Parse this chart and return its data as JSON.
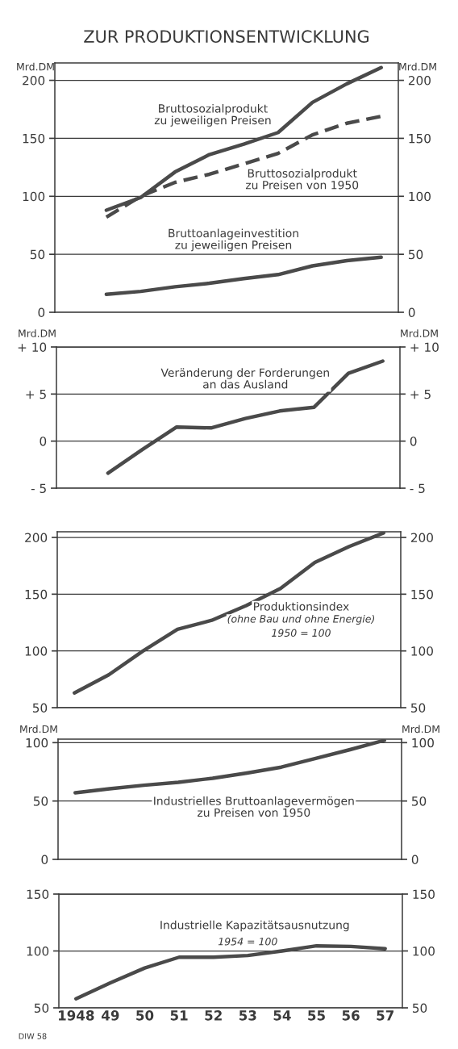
{
  "chart_data": [
    {
      "type": "line",
      "title": "ZUR PRODUKTIONSENTWICKLUNG",
      "ylabel": "Mrd.DM",
      "y2label": "Mrd.DM",
      "categories": [
        "1948",
        "49",
        "50",
        "51",
        "52",
        "53",
        "54",
        "55",
        "56",
        "57"
      ],
      "ylim": [
        0,
        215
      ],
      "yticks": [
        0,
        50,
        100,
        150,
        200
      ],
      "y2lim": [
        0,
        215
      ],
      "y2ticks": [
        0,
        50,
        100,
        150,
        200
      ],
      "tick_labels": "y",
      "grid": true,
      "legend": false,
      "series": [
        {
          "name": "Bruttosozialprodukt\nzu jeweiligen Preisen",
          "color": "#4a4a4a",
          "line_style": "solid",
          "values": [
            null,
            88,
            99,
            121,
            136,
            145,
            155,
            181,
            197,
            211
          ]
        },
        {
          "name": "Bruttosozialprodukt\nzu Preisen von 1950",
          "color": "#4a4a4a",
          "line_style": "dashed",
          "values": [
            null,
            82,
            100,
            112,
            119,
            128,
            137,
            153,
            163,
            169
          ]
        },
        {
          "name": "Bruttoanlageinvestition\nzu jeweiligen Preisen",
          "color": "#4a4a4a",
          "line_style": "solid",
          "values": [
            null,
            15.5,
            18,
            22,
            25,
            29,
            32.5,
            40,
            44.5,
            47.5
          ]
        }
      ]
    },
    {
      "type": "line",
      "ylabel": "Mrd.DM",
      "y2label": "Mrd.DM",
      "categories": [
        "1948",
        "49",
        "50",
        "51",
        "52",
        "53",
        "54",
        "55",
        "56",
        "57"
      ],
      "ylim": [
        -5,
        10
      ],
      "yticks": [
        {
          "value": -5,
          "label": "- 5"
        },
        0,
        {
          "value": 5,
          "label": "+ 5"
        },
        {
          "value": 10,
          "label": "+ 10"
        }
      ],
      "y2lim": [
        -5,
        10
      ],
      "y2ticks": [
        {
          "value": -5,
          "label": "- 5"
        },
        0,
        {
          "value": 5,
          "label": "+ 5"
        },
        {
          "value": 10,
          "label": "+ 10"
        }
      ],
      "tick_labels": "y",
      "grid": true,
      "legend": false,
      "series": [
        {
          "name": "Veränderung der Forderungen\nan das Ausland",
          "color": "#4a4a4a",
          "line_style": "solid",
          "values": [
            null,
            -3.4,
            -0.9,
            1.5,
            1.4,
            2.4,
            3.2,
            3.6,
            7.2,
            8.5
          ]
        }
      ]
    },
    {
      "type": "line",
      "categories": [
        "1948",
        "49",
        "50",
        "51",
        "52",
        "53",
        "54",
        "55",
        "56",
        "57"
      ],
      "ylim": [
        50,
        205
      ],
      "yticks": [
        50,
        100,
        150,
        200
      ],
      "y2lim": [
        50,
        205
      ],
      "y2ticks": [
        50,
        100,
        150,
        200
      ],
      "tick_labels": "y",
      "grid": true,
      "legend": false,
      "annotations": [
        "(ohne Bau und ohne Energie)",
        "1950 = 100"
      ],
      "series": [
        {
          "name": "Produktionsindex",
          "color": "#4a4a4a",
          "line_style": "solid",
          "values": [
            63,
            79,
            100,
            119,
            127,
            140,
            155,
            178,
            192,
            204
          ]
        }
      ]
    },
    {
      "type": "line",
      "ylabel": "Mrd.DM",
      "y2label": "Mrd.DM",
      "categories": [
        "1948",
        "49",
        "50",
        "51",
        "52",
        "53",
        "54",
        "55",
        "56",
        "57"
      ],
      "ylim": [
        0,
        103
      ],
      "yticks": [
        0,
        50,
        100
      ],
      "y2lim": [
        0,
        103
      ],
      "y2ticks": [
        0,
        50,
        100
      ],
      "tick_labels": "y",
      "grid": true,
      "legend": false,
      "series": [
        {
          "name": "Industrielles Bruttoanlagevermögen\nzu Preisen von 1950",
          "color": "#4a4a4a",
          "line_style": "solid",
          "values": [
            57,
            60.5,
            63.5,
            66,
            69.5,
            74,
            79,
            86.5,
            94,
            102
          ]
        }
      ]
    },
    {
      "type": "line",
      "categories": [
        "1948",
        "49",
        "50",
        "51",
        "52",
        "53",
        "54",
        "55",
        "56",
        "57"
      ],
      "ylim": [
        50,
        150
      ],
      "yticks": [
        50,
        100,
        150
      ],
      "y2lim": [
        50,
        150
      ],
      "y2ticks": [
        50,
        100,
        150
      ],
      "grid": true,
      "legend": false,
      "annotations": [
        "1954 = 100",
        "DIW 58"
      ],
      "series": [
        {
          "name": "Industrielle Kapazitätsausnutzung",
          "color": "#4a4a4a",
          "line_style": "solid",
          "values": [
            58,
            72,
            85,
            94.5,
            94.5,
            96,
            100,
            104.5,
            104,
            102
          ]
        }
      ]
    }
  ]
}
